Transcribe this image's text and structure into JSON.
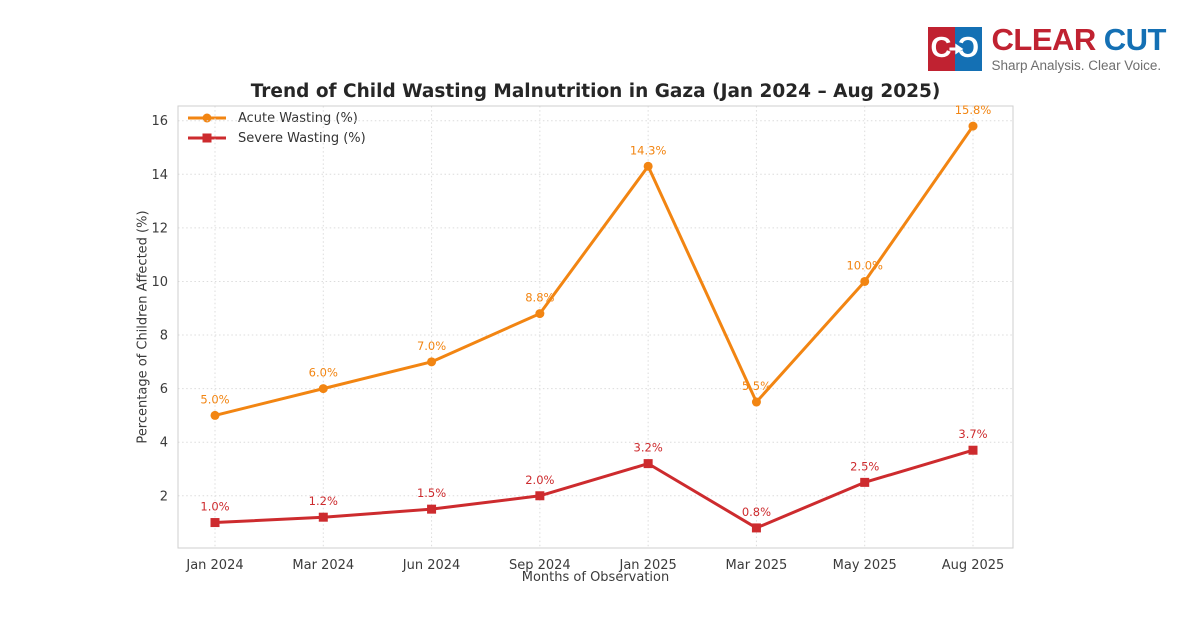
{
  "logo": {
    "icon_left_letter": "C",
    "icon_right_letter": "C",
    "brand_primary": "CLEAR",
    "brand_secondary": "CUT",
    "tagline": "Sharp Analysis. Clear Voice.",
    "colors": {
      "red": "#c02231",
      "blue": "#1470b4"
    }
  },
  "chart_data": {
    "type": "line",
    "title": "Trend of Child Wasting Malnutrition in Gaza (Jan 2024 – Aug 2025)",
    "xlabel": "Months of Observation",
    "ylabel": "Percentage of Children Affected (%)",
    "categories": [
      "Jan 2024",
      "Mar 2024",
      "Jun 2024",
      "Sep 2024",
      "Jan 2025",
      "Mar 2025",
      "May 2025",
      "Aug 2025"
    ],
    "series": [
      {
        "name": "Acute Wasting (%)",
        "color": "#f28512",
        "marker": "circle",
        "values": [
          5.0,
          6.0,
          7.0,
          8.8,
          14.3,
          5.5,
          10.0,
          15.8
        ],
        "point_labels": [
          "5.0%",
          "6.0%",
          "7.0%",
          "8.8%",
          "14.3%",
          "5.5%",
          "10.0%",
          "15.8%"
        ]
      },
      {
        "name": "Severe Wasting (%)",
        "color": "#cd2b2e",
        "marker": "square",
        "values": [
          1.0,
          1.2,
          1.5,
          2.0,
          3.2,
          0.8,
          2.5,
          3.7
        ],
        "point_labels": [
          "1.0%",
          "1.2%",
          "1.5%",
          "2.0%",
          "3.2%",
          "0.8%",
          "2.5%",
          "3.7%"
        ]
      }
    ],
    "yticks": [
      2,
      4,
      6,
      8,
      10,
      12,
      14,
      16
    ],
    "ylim": [
      0.05,
      16.55
    ],
    "grid": true,
    "legend_position": "upper left"
  }
}
